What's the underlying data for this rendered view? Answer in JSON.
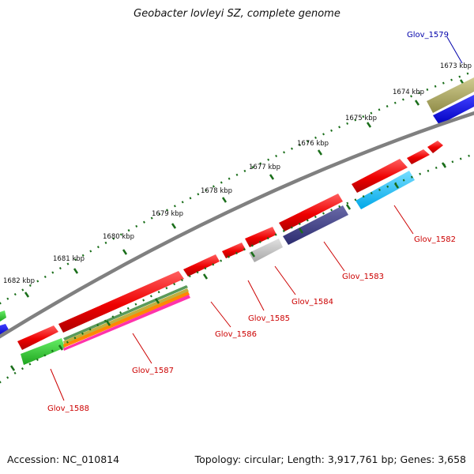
{
  "title": "Geobacter lovleyi SZ, complete genome",
  "footer": {
    "accession": "Accession: NC_010814",
    "topology": "Topology: circular; Length: 3,917,761 bp; Genes: 3,658"
  },
  "colors": {
    "backbone": "#808080",
    "tick": "#1a6e1a",
    "label_red": "#cc0000",
    "label_blue": "#0000aa"
  },
  "kbp_labels": [
    "1673 kbp",
    "1674 kbp",
    "1675 kbp",
    "1676 kbp",
    "1677 kbp",
    "1678 kbp",
    "1679 kbp",
    "1680 kbp",
    "1681 kbp",
    "1682 kbp"
  ],
  "gene_labels": [
    "Glov_1579",
    "Glov_1582",
    "Glov_1583",
    "Glov_1584",
    "Glov_1585",
    "Glov_1586",
    "Glov_1587",
    "Glov_1588"
  ]
}
